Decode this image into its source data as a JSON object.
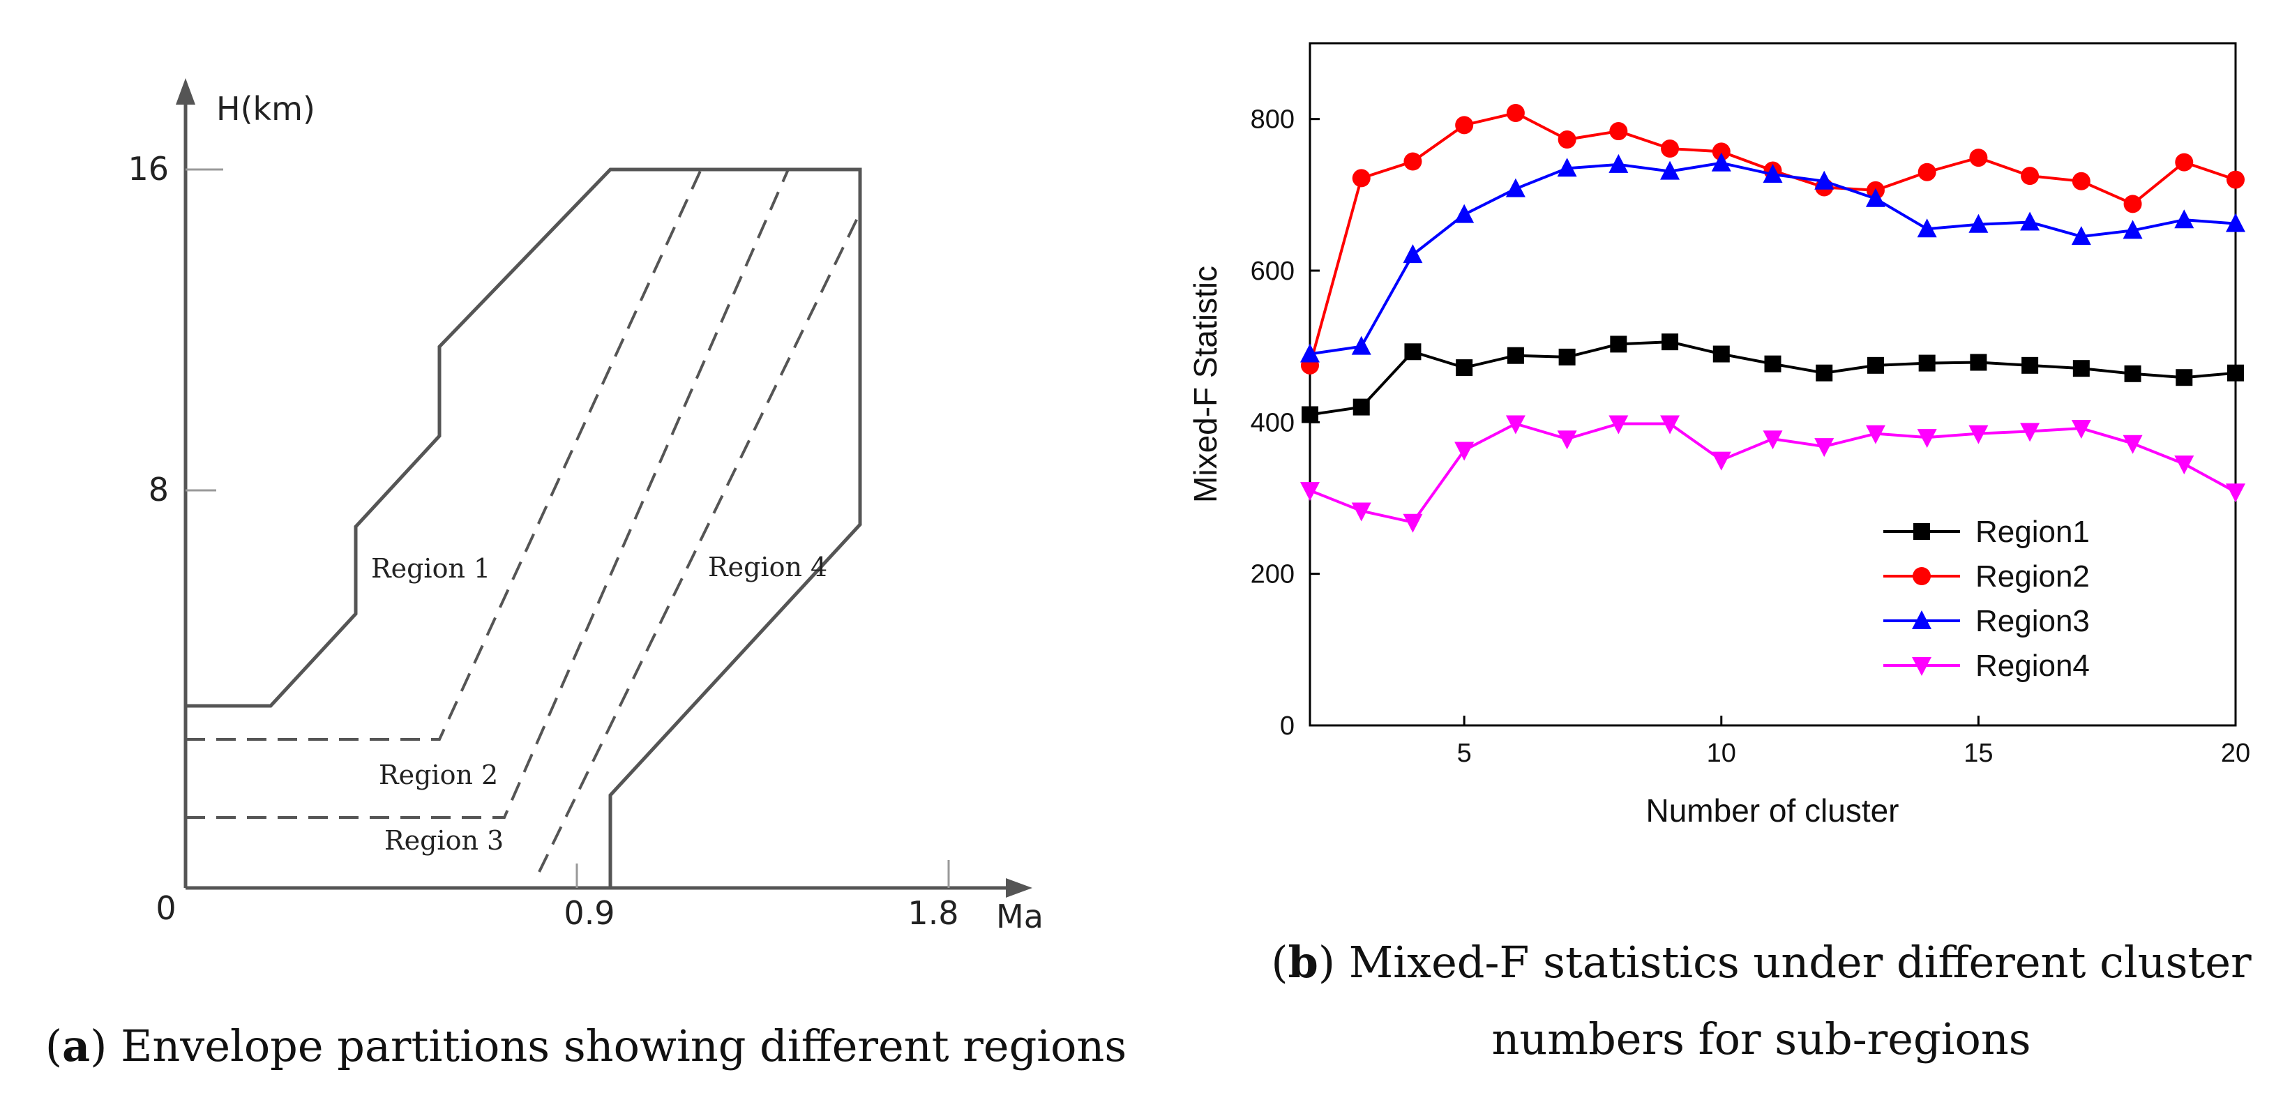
{
  "chart_data": [
    {
      "type": "diagram",
      "ylabel": "H(km)",
      "xlabel": "Ma",
      "origin_label": "0",
      "x_ticks": [
        "0.9",
        "1.8"
      ],
      "y_ticks": [
        "8",
        "16"
      ],
      "regions": [
        "Region 1",
        "Region 2",
        "Region 3",
        "Region 4"
      ]
    },
    {
      "type": "line",
      "xlabel": "Number of cluster",
      "ylabel": "Mixed-F Statistic",
      "xlim": [
        2,
        20
      ],
      "ylim": [
        0,
        900
      ],
      "x_ticks": [
        5,
        10,
        15,
        20
      ],
      "y_ticks": [
        0,
        200,
        400,
        600,
        800
      ],
      "legend_position": "bottom-right",
      "x": [
        2,
        3,
        4,
        5,
        6,
        7,
        8,
        9,
        10,
        11,
        12,
        13,
        14,
        15,
        16,
        17,
        18,
        19,
        20
      ],
      "series": [
        {
          "name": "Region1",
          "color": "#000000",
          "marker": "square",
          "values": [
            410,
            420,
            493,
            472,
            488,
            486,
            503,
            506,
            490,
            477,
            465,
            475,
            478,
            479,
            475,
            471,
            464,
            459,
            465
          ]
        },
        {
          "name": "Region2",
          "color": "#ff0000",
          "marker": "circle",
          "values": [
            475,
            722,
            744,
            792,
            808,
            773,
            784,
            761,
            757,
            732,
            710,
            706,
            730,
            749,
            725,
            718,
            688,
            743,
            720
          ]
        },
        {
          "name": "Region3",
          "color": "#0000ff",
          "marker": "triangle-up",
          "values": [
            490,
            500,
            621,
            674,
            708,
            735,
            740,
            731,
            742,
            727,
            718,
            695,
            655,
            661,
            664,
            645,
            653,
            667,
            662
          ]
        },
        {
          "name": "Region4",
          "color": "#ff00ff",
          "marker": "triangle-down",
          "values": [
            310,
            283,
            268,
            363,
            398,
            378,
            398,
            398,
            350,
            378,
            368,
            385,
            380,
            385,
            388,
            392,
            372,
            345,
            308
          ]
        }
      ]
    }
  ],
  "captions": {
    "a_letter": "a",
    "a_text": "Envelope partitions showing different regions",
    "b_letter": "b",
    "b_line1": "Mixed-F statistics under different cluster",
    "b_line2": "numbers for sub-regions"
  }
}
